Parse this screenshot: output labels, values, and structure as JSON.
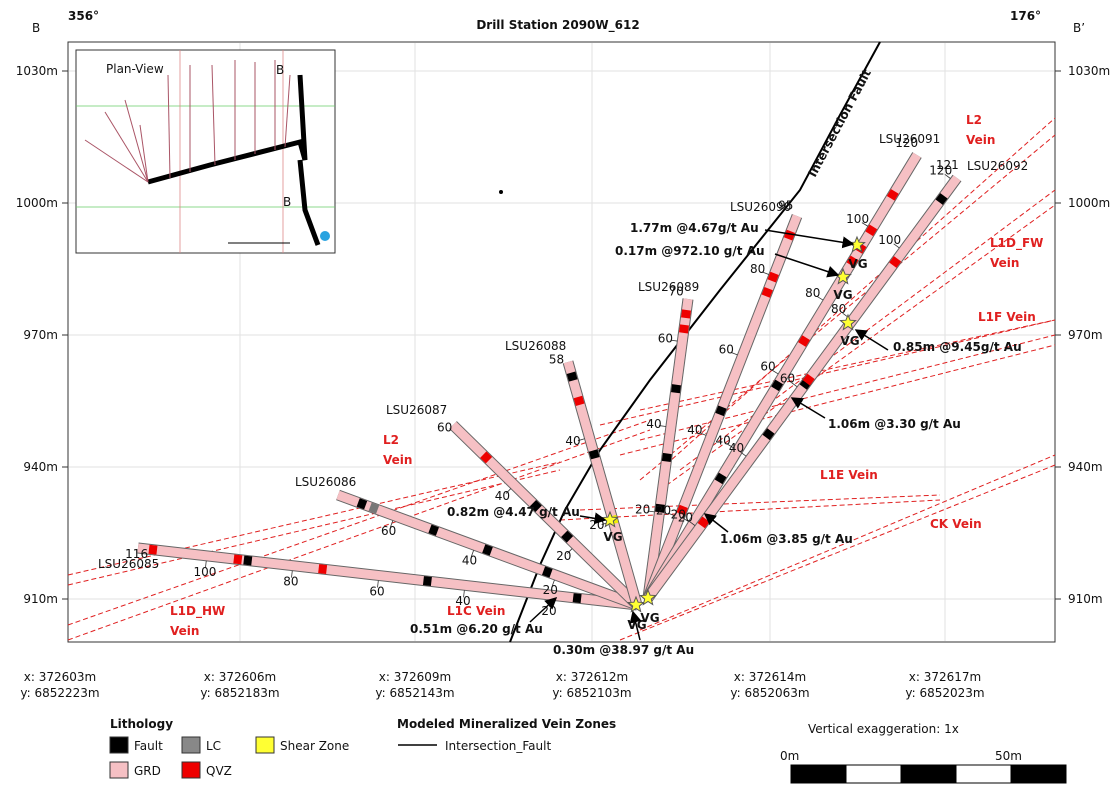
{
  "header": {
    "title": "Drill Station 2090W_612",
    "left_section": "B",
    "left_azimuth": "356°",
    "right_azimuth": "176°",
    "right_section": "B’"
  },
  "y_axis": {
    "labels": [
      "1030m",
      "1000m",
      "970m",
      "940m",
      "910m"
    ]
  },
  "x_axis": {
    "labels": [
      {
        "x": "x: 372603m",
        "y": "y: 6852223m"
      },
      {
        "x": "x: 372606m",
        "y": "y: 6852183m"
      },
      {
        "x": "x: 372609m",
        "y": "y: 6852143m"
      },
      {
        "x": "x: 372612m",
        "y": "y: 6852103m"
      },
      {
        "x": "x: 372614m",
        "y": "y: 6852063m"
      },
      {
        "x": "x: 372617m",
        "y": "y: 6852023m"
      }
    ]
  },
  "inset": {
    "title": "Plan-View",
    "markers": [
      "B",
      "B"
    ]
  },
  "drill_holes": [
    {
      "name": "LSU26085",
      "end_depth": "116",
      "depth_labels": [
        "100",
        "80",
        "60",
        "40",
        "20"
      ]
    },
    {
      "name": "LSU26086",
      "depth_labels": [
        "60",
        "40",
        "20"
      ]
    },
    {
      "name": "LSU26087",
      "end_depth": "60",
      "depth_labels": [
        "40",
        "20"
      ]
    },
    {
      "name": "LSU26088",
      "end_depth": "58",
      "depth_labels": [
        "40",
        "20"
      ]
    },
    {
      "name": "LSU26089",
      "end_depth": "70",
      "depth_labels": [
        "60",
        "40",
        "20"
      ]
    },
    {
      "name": "LSU26090",
      "end_depth": "95",
      "depth_labels": [
        "80",
        "60",
        "40",
        "20"
      ]
    },
    {
      "name": "LSU26091",
      "end_depth": "120",
      "depth_labels": [
        "100",
        "80",
        "60",
        "40",
        "20"
      ]
    },
    {
      "name": "LSU26092",
      "end_depth": "121",
      "depth_labels": [
        "120",
        "100",
        "80",
        "60",
        "40",
        "20"
      ]
    }
  ],
  "veins": [
    [
      "L2",
      "Vein"
    ],
    [
      "L1D_FW",
      "Vein"
    ],
    [
      "L1F Vein"
    ],
    [
      "L1E Vein"
    ],
    [
      "CK Vein"
    ],
    [
      "L2",
      "Vein"
    ],
    [
      "L1C Vein"
    ],
    [
      "L1D_HW",
      "Vein"
    ]
  ],
  "intercepts": [
    "1.77m @4.67g/t Au",
    "0.17m @972.10 g/t Au",
    "0.85m @9.45g/t Au",
    "1.06m @3.30 g/t Au",
    "1.06m @3.85 g/t Au",
    "0.82m @4.47 g/t Au",
    "0.51m @6.20 g/t Au",
    "0.30m @38.97 g/t Au"
  ],
  "vg_label": "VG",
  "fault_label": "Intersection Fault",
  "legend": {
    "lithology_title": "Lithology",
    "lithology": [
      "Fault",
      "LC",
      "Shear Zone",
      "GRD",
      "QVZ"
    ],
    "vein_title": "Modeled Mineralized Vein Zones",
    "fault": "Intersection_Fault"
  },
  "scale": {
    "exaggeration": "Vertical exaggeration: 1x",
    "start": "0m",
    "end": "50m"
  }
}
